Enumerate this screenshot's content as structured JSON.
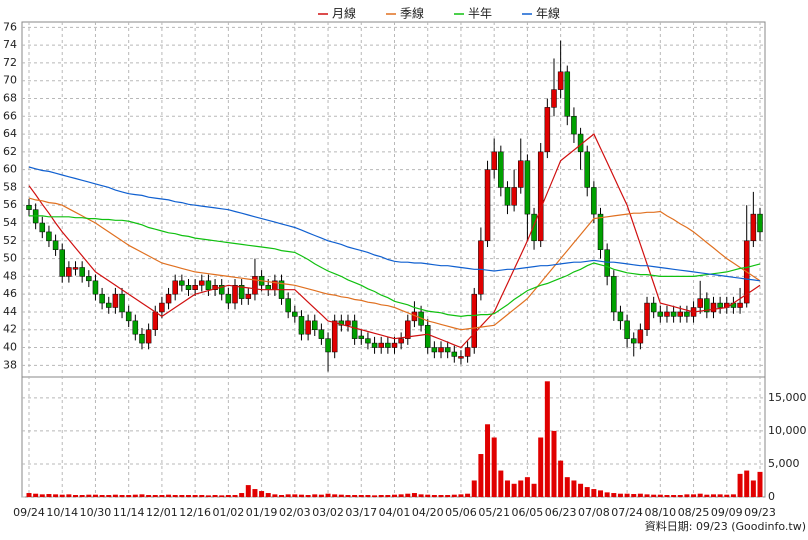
{
  "chart_data": {
    "type": "candlestick",
    "categories": [
      "09/24",
      null,
      null,
      null,
      null,
      "10/14",
      null,
      null,
      null,
      null,
      "10/30",
      null,
      null,
      null,
      null,
      "11/14",
      null,
      null,
      null,
      null,
      "12/01",
      null,
      null,
      null,
      null,
      "12/16",
      null,
      null,
      null,
      null,
      "01/02",
      null,
      null,
      null,
      null,
      "01/19",
      null,
      null,
      null,
      null,
      "02/03",
      null,
      null,
      null,
      null,
      "03/02",
      null,
      null,
      null,
      null,
      "03/17",
      null,
      null,
      null,
      null,
      "04/01",
      null,
      null,
      null,
      null,
      "04/20",
      null,
      null,
      null,
      null,
      "05/06",
      null,
      null,
      null,
      null,
      "05/21",
      null,
      null,
      null,
      null,
      "06/05",
      null,
      null,
      null,
      null,
      "06/23",
      null,
      null,
      null,
      null,
      "07/08",
      null,
      null,
      null,
      null,
      "07/24",
      null,
      null,
      null,
      null,
      "08/10",
      null,
      null,
      null,
      null,
      "08/25",
      null,
      null,
      null,
      null,
      "09/09",
      null,
      null,
      null,
      null,
      "09/23"
    ],
    "open": [
      56,
      55.5,
      54,
      53,
      52,
      51,
      48,
      48.8,
      49,
      48,
      47.5,
      46,
      45,
      44.5,
      46,
      44,
      43,
      41.5,
      40.5,
      42,
      44,
      45,
      46,
      47.5,
      47,
      46.5,
      47,
      47.5,
      46.5,
      47,
      46,
      45,
      47,
      45.5,
      46,
      48,
      47,
      46.5,
      47.5,
      45.5,
      44,
      43.5,
      41.5,
      43,
      42,
      41,
      39.5,
      43,
      42.5,
      43,
      41.3,
      41,
      40.5,
      40,
      40.5,
      40,
      40.5,
      41,
      43,
      44,
      42.5,
      40,
      39.5,
      40,
      39.5,
      38.8,
      39,
      40,
      46,
      52,
      60,
      62,
      58,
      56,
      58,
      61,
      55,
      52,
      62,
      67,
      69,
      71,
      66,
      64,
      62,
      58,
      55,
      51,
      48,
      44,
      43,
      41,
      40.5,
      42,
      45,
      44,
      43.5,
      44,
      43.5,
      44,
      43.5,
      44.5,
      45.5,
      44,
      45,
      44.5,
      45,
      44.5,
      45,
      52,
      55
    ],
    "high": [
      56.7,
      56.2,
      54.7,
      53.7,
      52.7,
      51.7,
      49.7,
      49.7,
      49.7,
      48.7,
      48.2,
      46.7,
      45.7,
      46.7,
      46.7,
      44.7,
      43.7,
      42.2,
      42.7,
      44.7,
      45.7,
      46.7,
      48.2,
      48.2,
      47.7,
      47.7,
      48.2,
      48.2,
      47.7,
      47.7,
      46.7,
      47.7,
      47.7,
      46.7,
      50,
      48.7,
      47.7,
      48.2,
      48.2,
      46.2,
      44.7,
      44.2,
      43.7,
      43.7,
      42.7,
      41.7,
      43.7,
      43.7,
      43.7,
      43.7,
      42,
      41.7,
      41.2,
      41.2,
      41.2,
      41.2,
      41.7,
      43.7,
      45.2,
      44.7,
      43.2,
      40.7,
      40.7,
      40.7,
      40.2,
      39.7,
      40.7,
      46.7,
      53.5,
      61,
      63.5,
      62.7,
      58.7,
      60,
      63.5,
      61.7,
      55.7,
      63,
      68,
      72.5,
      74.5,
      71.7,
      67,
      64.7,
      62.7,
      58.7,
      55.7,
      51.7,
      48.7,
      44.7,
      43.7,
      41.7,
      42.7,
      45.7,
      45.7,
      44.7,
      44.7,
      44.7,
      44.7,
      44.7,
      45.2,
      47.5,
      46.2,
      45.7,
      45.7,
      45.7,
      45.7,
      46.7,
      56,
      57.5,
      55.7
    ],
    "low": [
      54.8,
      53.3,
      52.3,
      51.3,
      50.3,
      47.3,
      47.3,
      48.1,
      47.3,
      46.8,
      45.3,
      44.3,
      43.8,
      43.8,
      43.3,
      42.3,
      40.8,
      39.8,
      39.8,
      41.3,
      43.3,
      44.3,
      45.3,
      46.3,
      45.8,
      45.8,
      46.3,
      45.8,
      45.8,
      45.3,
      44.3,
      44.3,
      44.8,
      44.8,
      45.3,
      46.3,
      45.8,
      45.8,
      44.8,
      43.3,
      42.8,
      40.8,
      40.8,
      41.3,
      40.3,
      37.3,
      38.8,
      41.8,
      41.8,
      40.3,
      40.3,
      39.8,
      39.3,
      39.3,
      39.3,
      39.3,
      39.8,
      40.3,
      42.3,
      41.8,
      39.3,
      38.8,
      38.8,
      38.8,
      38.3,
      38.1,
      38.3,
      39.3,
      45.3,
      51.3,
      59,
      57,
      55,
      55.3,
      57.3,
      52,
      51,
      51.3,
      61.3,
      66,
      68,
      65,
      63,
      60,
      57,
      54,
      50,
      47,
      43,
      42,
      40,
      39,
      39.8,
      41.3,
      43.3,
      42.8,
      42.8,
      42.8,
      42.8,
      42.8,
      42.8,
      43.8,
      43.3,
      43.3,
      43.8,
      43.8,
      43.8,
      43.8,
      44.5,
      51.3,
      52
    ],
    "close": [
      55.5,
      54,
      53,
      52,
      51,
      48,
      49,
      49,
      48,
      47.5,
      46,
      45,
      44.5,
      46,
      44,
      43,
      41.5,
      40.5,
      42,
      44,
      45,
      46,
      47.5,
      47,
      46.5,
      47,
      47.5,
      46.5,
      47,
      46,
      45,
      47,
      45.5,
      46,
      48,
      47,
      46.5,
      47.5,
      45.5,
      44,
      43.5,
      41.5,
      43,
      42,
      41,
      39.5,
      43,
      42.5,
      43,
      41,
      41,
      40.5,
      40,
      40.5,
      40,
      40.5,
      41,
      43,
      44,
      42.5,
      40,
      39.5,
      40,
      39.5,
      39,
      39,
      40,
      46,
      52,
      60,
      62,
      58,
      56,
      58,
      61,
      55,
      52,
      62,
      67,
      69,
      71,
      66,
      64,
      62,
      58,
      55,
      51,
      48,
      44,
      43,
      41,
      40.5,
      42,
      45,
      44,
      43.5,
      44,
      43.5,
      44,
      43.5,
      44.5,
      45.5,
      44,
      45,
      44.5,
      45,
      44.5,
      45,
      52,
      55,
      53
    ],
    "up_color": "#e00000",
    "down_color": "#00a000",
    "ylim": [
      36.8,
      76.6
    ],
    "yticks": [
      38,
      40,
      42,
      44,
      46,
      48,
      50,
      52,
      54,
      56,
      58,
      60,
      62,
      64,
      66,
      68,
      70,
      72,
      74,
      76
    ],
    "grid": true,
    "series": [
      {
        "name": "月線",
        "color": "#d01010",
        "values": [
          58.2,
          57.2,
          56.1,
          55.1,
          54.0,
          53,
          52.1,
          51.2,
          50.3,
          49.4,
          48.5,
          48,
          47.5,
          47,
          46.5,
          46,
          45.5,
          45,
          44.5,
          44,
          43.5,
          44,
          44.5,
          45,
          45.5,
          46,
          46.2,
          46.4,
          46.6,
          46.8,
          47,
          46.9,
          46.8,
          46.7,
          46.6,
          46.5,
          46.5,
          46.5,
          46.5,
          46.5,
          46.5,
          45.8,
          45.1,
          44.4,
          43.7,
          43,
          42.8,
          42.6,
          42.4,
          42.2,
          42,
          41.8,
          41.6,
          41.4,
          41.2,
          41,
          41.1,
          41.2,
          41.3,
          41.4,
          41.5,
          41.2,
          40.9,
          40.6,
          40.3,
          40,
          40.8,
          41.6,
          42.4,
          43.2,
          44,
          45.6,
          47.2,
          48.8,
          50.4,
          52,
          53.8,
          55.6,
          57.4,
          59.2,
          61,
          61.6,
          62.2,
          62.8,
          63.4,
          64,
          62.4,
          60.8,
          59.2,
          57.6,
          56,
          53.8,
          51.6,
          49.4,
          47.2,
          45,
          44.8,
          44.6,
          44.4,
          44.2,
          44,
          44.1,
          44.2,
          44.3,
          44.4,
          44.5,
          45,
          45.5,
          46,
          46.5,
          47
        ]
      },
      {
        "name": "季線",
        "color": "#e07020",
        "values": [
          56.8,
          56.6,
          56.5,
          56.3,
          56.2,
          56,
          55.6,
          55.2,
          54.8,
          54.4,
          54,
          53.5,
          53,
          52.5,
          52,
          51.5,
          51.1,
          50.7,
          50.3,
          49.9,
          49.5,
          49.3,
          49.1,
          48.9,
          48.7,
          48.5,
          48.4,
          48.3,
          48.2,
          48.1,
          48,
          47.9,
          47.8,
          47.7,
          47.6,
          47.5,
          47.4,
          47.3,
          47.2,
          47.1,
          47,
          46.8,
          46.6,
          46.4,
          46.2,
          46,
          45.9,
          45.7,
          45.6,
          45.4,
          45.3,
          45.1,
          45,
          44.8,
          44.7,
          44.5,
          44.2,
          43.9,
          43.6,
          43.3,
          43,
          42.8,
          42.6,
          42.4,
          42.2,
          42,
          42.1,
          42.2,
          42.3,
          42.4,
          42.5,
          43.1,
          43.7,
          44.3,
          44.9,
          45.5,
          46.4,
          47.3,
          48.2,
          49.1,
          50,
          50.9,
          51.8,
          52.7,
          53.6,
          54.5,
          54.6,
          54.7,
          54.8,
          54.9,
          55,
          55.1,
          55.1,
          55.2,
          55.2,
          55.3,
          54.8,
          54.4,
          53.9,
          53.5,
          53,
          52.4,
          51.8,
          51.2,
          50.6,
          50,
          49.5,
          49,
          48.5,
          48,
          47.5
        ]
      },
      {
        "name": "半年",
        "color": "#10c010",
        "values": [
          54.8,
          54.8,
          54.8,
          54.7,
          54.7,
          54.7,
          54.7,
          54.6,
          54.6,
          54.5,
          54.5,
          54.4,
          54.4,
          54.3,
          54.3,
          54.2,
          54,
          53.8,
          53.5,
          53.3,
          53.1,
          52.9,
          52.8,
          52.6,
          52.5,
          52.3,
          52.2,
          52.1,
          52,
          51.9,
          51.8,
          51.7,
          51.6,
          51.5,
          51.4,
          51.3,
          51.2,
          51.1,
          50.9,
          50.8,
          50.7,
          50.3,
          49.9,
          49.4,
          49,
          48.6,
          48.3,
          48,
          47.6,
          47.3,
          47,
          46.6,
          46.3,
          45.9,
          45.6,
          45.2,
          45,
          44.8,
          44.5,
          44.3,
          44.1,
          44,
          43.9,
          43.7,
          43.6,
          43.5,
          43.6,
          43.6,
          43.7,
          43.7,
          43.8,
          44.3,
          44.8,
          45.4,
          45.9,
          46.4,
          46.7,
          47,
          47.2,
          47.5,
          47.8,
          48.1,
          48.5,
          48.8,
          49.2,
          49.5,
          49.3,
          49.1,
          48.8,
          48.6,
          48.4,
          48.3,
          48.2,
          48.2,
          48.1,
          48,
          48,
          48,
          48,
          48,
          48,
          48.1,
          48.2,
          48.3,
          48.4,
          48.5,
          48.7,
          48.9,
          49,
          49.2,
          49.4
        ]
      },
      {
        "name": "年線",
        "color": "#1060d0",
        "values": [
          60.3,
          60.1,
          59.9,
          59.8,
          59.6,
          59.4,
          59.2,
          59,
          58.8,
          58.6,
          58.4,
          58.2,
          58,
          57.7,
          57.5,
          57.3,
          57.2,
          57.1,
          56.9,
          56.8,
          56.7,
          56.6,
          56.4,
          56.3,
          56.1,
          56,
          55.9,
          55.8,
          55.7,
          55.6,
          55.5,
          55.3,
          55.1,
          54.9,
          54.7,
          54.5,
          54.3,
          54.1,
          53.9,
          53.7,
          53.5,
          53.2,
          52.9,
          52.6,
          52.3,
          52,
          51.8,
          51.6,
          51.3,
          51.1,
          50.9,
          50.7,
          50.4,
          50.2,
          49.9,
          49.7,
          49.6,
          49.6,
          49.5,
          49.5,
          49.4,
          49.3,
          49.2,
          49.2,
          49.1,
          49,
          48.9,
          48.8,
          48.8,
          48.7,
          48.6,
          48.7,
          48.8,
          48.8,
          48.9,
          49,
          49.1,
          49.2,
          49.2,
          49.3,
          49.4,
          49.5,
          49.6,
          49.6,
          49.7,
          49.8,
          49.7,
          49.6,
          49.6,
          49.5,
          49.4,
          49.3,
          49.2,
          49.2,
          49.1,
          49,
          48.9,
          48.8,
          48.7,
          48.6,
          48.5,
          48.4,
          48.3,
          48.2,
          48.1,
          48,
          47.9,
          47.8,
          47.7,
          47.6,
          47.5
        ]
      }
    ],
    "volume": {
      "color": "#e00000",
      "values": [
        600,
        500,
        400,
        450,
        400,
        350,
        400,
        300,
        300,
        350,
        350,
        300,
        300,
        350,
        300,
        300,
        350,
        400,
        300,
        300,
        300,
        350,
        300,
        300,
        300,
        300,
        300,
        250,
        300,
        250,
        300,
        300,
        600,
        1800,
        1200,
        900,
        600,
        400,
        300,
        400,
        400,
        350,
        300,
        400,
        350,
        500,
        400,
        350,
        300,
        300,
        300,
        300,
        250,
        300,
        300,
        350,
        400,
        500,
        600,
        400,
        350,
        300,
        300,
        300,
        350,
        400,
        500,
        2500,
        6500,
        11000,
        9000,
        4000,
        2500,
        2000,
        2500,
        3000,
        2000,
        9000,
        17500,
        10000,
        5500,
        3000,
        2500,
        2000,
        1500,
        1200,
        1000,
        700,
        600,
        500,
        500,
        450,
        500,
        400,
        350,
        350,
        300,
        300,
        300,
        400,
        400,
        500,
        350,
        400,
        400,
        350,
        400,
        3500,
        4000,
        2500,
        3800
      ],
      "ylim": [
        0,
        18000
      ],
      "yticks": [
        0,
        {
          "value": 5000,
          "label": "5,000"
        },
        {
          "value": 10000,
          "label": "10,000"
        },
        {
          "value": 15000,
          "label": "15,000"
        }
      ]
    },
    "source": "資料日期: 09/23 (Goodinfo.tw)"
  }
}
